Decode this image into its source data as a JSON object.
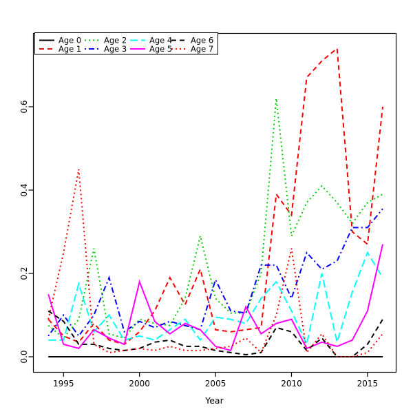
{
  "figure": {
    "background": "#FFFFFF",
    "axis_color": "#000000"
  },
  "chart_data": {
    "type": "line",
    "title": "",
    "xlabel": "Year",
    "ylabel": "",
    "grid": false,
    "legend_position": "top-left",
    "xlim": [
      1993.0,
      2016.9
    ],
    "ylim": [
      0,
      0.777
    ],
    "x_ticks": [
      1995,
      2000,
      2005,
      2010,
      2015
    ],
    "x_tick_labels": [
      "1995",
      "2000",
      "2005",
      "2010",
      "2015"
    ],
    "y_ticks": [
      0.0,
      0.2,
      0.4,
      0.6
    ],
    "y_tick_labels": [
      "0.0",
      "0.2",
      "0.4",
      "0.6"
    ],
    "x": [
      1994,
      1995,
      1996,
      1997,
      1998,
      1999,
      2000,
      2001,
      2002,
      2003,
      2004,
      2005,
      2006,
      2007,
      2008,
      2009,
      2010,
      2011,
      2012,
      2013,
      2014,
      2015,
      2016
    ],
    "series": [
      {
        "label": "Age 0",
        "color": "#000000",
        "linetype": "solid",
        "values": [
          0,
          0,
          0,
          0,
          0,
          0,
          0,
          0,
          0,
          0,
          0,
          0,
          0,
          0,
          0,
          0,
          0,
          0,
          0,
          0,
          0,
          0,
          0
        ]
      },
      {
        "label": "Age 1",
        "color": "#FF0000",
        "linetype": "dashed",
        "values": [
          0.09,
          0.05,
          0.035,
          0.08,
          0.04,
          0.03,
          0.06,
          0.11,
          0.19,
          0.125,
          0.21,
          0.065,
          0.06,
          0.065,
          0.07,
          0.39,
          0.34,
          0.67,
          0.71,
          0.74,
          0.3,
          0.27,
          0.6
        ]
      },
      {
        "label": "Age 2",
        "color": "#00CD00",
        "linetype": "dotted",
        "values": [
          0.075,
          0.045,
          0.09,
          0.26,
          0.055,
          0.045,
          0.09,
          0.08,
          0.075,
          0.14,
          0.29,
          0.14,
          0.105,
          0.105,
          0.2,
          0.62,
          0.29,
          0.37,
          0.41,
          0.37,
          0.32,
          0.37,
          0.39
        ]
      },
      {
        "label": "Age 3",
        "color": "#0000FF",
        "linetype": "dotdash",
        "values": [
          0.05,
          0.1,
          0.05,
          0.1,
          0.19,
          0.06,
          0.085,
          0.07,
          0.085,
          0.075,
          0.065,
          0.185,
          0.11,
          0.105,
          0.22,
          0.22,
          0.14,
          0.25,
          0.21,
          0.23,
          0.31,
          0.31,
          0.355
        ]
      },
      {
        "label": "Age 4",
        "color": "#00FFFF",
        "linetype": "longdash",
        "values": [
          0.04,
          0.04,
          0.175,
          0.06,
          0.1,
          0.04,
          0.05,
          0.04,
          0.065,
          0.09,
          0.04,
          0.095,
          0.09,
          0.08,
          0.14,
          0.18,
          0.11,
          0.03,
          0.2,
          0.035,
          0.155,
          0.25,
          0.19
        ]
      },
      {
        "label": "Age 5",
        "color": "#FF00FF",
        "linetype": "solid",
        "values": [
          0.15,
          0.03,
          0.02,
          0.065,
          0.045,
          0.03,
          0.18,
          0.085,
          0.055,
          0.08,
          0.065,
          0.025,
          0.015,
          0.12,
          0.055,
          0.08,
          0.09,
          0.02,
          0.035,
          0.025,
          0.04,
          0.11,
          0.27
        ]
      },
      {
        "label": "Age 6",
        "color": "#000000",
        "linetype": "dashed",
        "values": [
          0.11,
          0.085,
          0.03,
          0.03,
          0.02,
          0.015,
          0.02,
          0.035,
          0.04,
          0.025,
          0.025,
          0.015,
          0.01,
          0.005,
          0.01,
          0.07,
          0.06,
          0.015,
          0.045,
          0,
          0,
          0.03,
          0.09
        ]
      },
      {
        "label": "Age 7",
        "color": "#FF0000",
        "linetype": "dotted",
        "values": [
          0.09,
          0.25,
          0.45,
          0.03,
          0.01,
          0.015,
          0.02,
          0.015,
          0.025,
          0.015,
          0.015,
          0.02,
          0.025,
          0.045,
          0.01,
          0.1,
          0.26,
          0.01,
          0.055,
          0,
          0,
          0.01,
          0.055
        ]
      }
    ]
  }
}
